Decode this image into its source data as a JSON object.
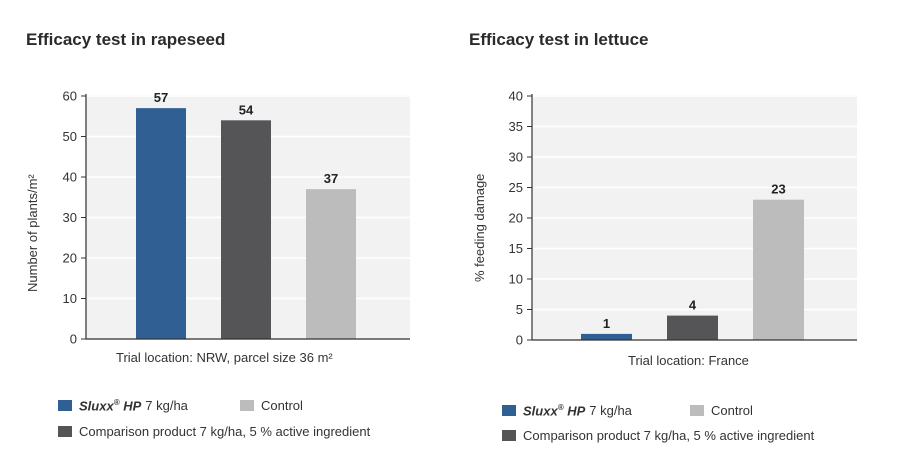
{
  "colors": {
    "blue": "#2f5f93",
    "dark": "#555558",
    "light": "#bcbcbc",
    "plot_bg": "#f2f2f2"
  },
  "chart_data": [
    {
      "type": "bar",
      "title": "Efficacy test in rapeseed",
      "xlabel": "Trial location: NRW, parcel size 36 m²",
      "ylabel": "Number of plants/m²",
      "ylim": [
        0,
        60
      ],
      "yticks": [
        "0",
        "10",
        "20",
        "30",
        "40",
        "50",
        "60"
      ],
      "categories": [
        "Sluxx® HP 7 kg/ha",
        "Comparison product 7 kg/ha, 5 % active ingredient",
        "Control"
      ],
      "values": [
        57,
        54,
        37
      ],
      "data_labels": [
        "57",
        "54",
        "37"
      ],
      "grid": true,
      "legend_position": "bottom"
    },
    {
      "type": "bar",
      "title": "Efficacy test in lettuce",
      "xlabel": "Trial location: France",
      "ylabel": "% feeding damage",
      "ylim": [
        0,
        40
      ],
      "yticks": [
        "0",
        "5",
        "10",
        "15",
        "20",
        "25",
        "30",
        "35",
        "40"
      ],
      "categories": [
        "Sluxx® HP 7 kg/ha",
        "Comparison product 7 kg/ha, 5 % active ingredient",
        "Control"
      ],
      "values": [
        1,
        4,
        23
      ],
      "data_labels": [
        "1",
        "4",
        "23"
      ],
      "grid": true,
      "legend_position": "bottom"
    }
  ],
  "legend": {
    "brand_name": "Sluxx",
    "brand_mark": "®",
    "brand_suffix": " HP",
    "sluxx_rate": "7 kg/ha",
    "control": "Control",
    "comparison": "Comparison product 7 kg/ha, 5 % active ingredient"
  }
}
